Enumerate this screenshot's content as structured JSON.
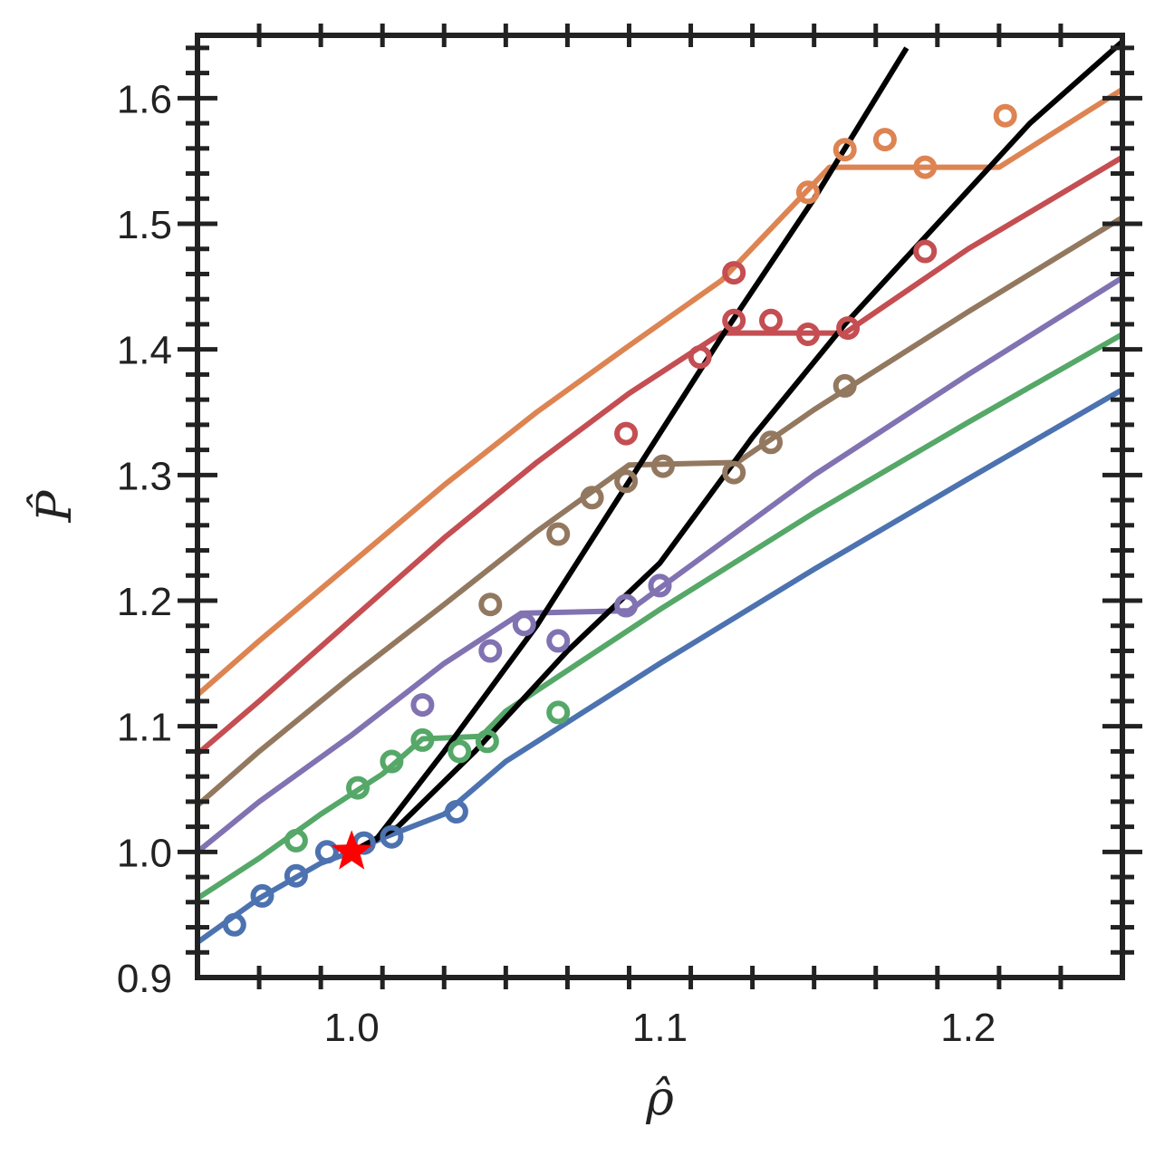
{
  "chart_data": {
    "type": "line",
    "title": "",
    "xlabel": "ρ̂",
    "ylabel": "P̂",
    "xlim": [
      0.95,
      1.25
    ],
    "ylim": [
      0.9,
      1.65
    ],
    "xticks": [
      1.0,
      1.1,
      1.2
    ],
    "xtick_labels": [
      "1.0",
      "1.1",
      "1.2"
    ],
    "yticks": [
      0.9,
      1.0,
      1.1,
      1.2,
      1.3,
      1.4,
      1.5,
      1.6
    ],
    "ytick_labels": [
      "0.9",
      "1.0",
      "1.1",
      "1.2",
      "1.3",
      "1.4",
      "1.5",
      "1.6"
    ],
    "grid": false,
    "legend": "none",
    "series": [
      {
        "color": "#4c72b0",
        "line": [
          [
            0.95,
            0.928
          ],
          [
            0.97,
            0.963
          ],
          [
            0.99,
            0.991
          ],
          [
            1.0,
            1.0
          ],
          [
            1.01,
            1.011
          ],
          [
            1.03,
            1.03
          ],
          [
            1.05,
            1.072
          ],
          [
            1.1,
            1.15
          ],
          [
            1.15,
            1.225
          ],
          [
            1.2,
            1.297
          ],
          [
            1.25,
            1.368
          ]
        ],
        "points": [
          [
            0.962,
            0.942
          ],
          [
            0.971,
            0.965
          ],
          [
            0.982,
            0.981
          ],
          [
            0.992,
            1.0
          ],
          [
            1.004,
            1.007
          ],
          [
            1.013,
            1.012
          ],
          [
            1.034,
            1.032
          ]
        ]
      },
      {
        "color": "#55a868",
        "line": [
          [
            0.95,
            0.963
          ],
          [
            0.97,
            0.995
          ],
          [
            0.99,
            1.03
          ],
          [
            1.01,
            1.062
          ],
          [
            1.023,
            1.09
          ],
          [
            1.042,
            1.092
          ],
          [
            1.05,
            1.112
          ],
          [
            1.1,
            1.193
          ],
          [
            1.15,
            1.27
          ],
          [
            1.2,
            1.342
          ],
          [
            1.25,
            1.412
          ]
        ],
        "points": [
          [
            0.982,
            1.009
          ],
          [
            1.002,
            1.051
          ],
          [
            1.013,
            1.072
          ],
          [
            1.023,
            1.089
          ],
          [
            1.035,
            1.08
          ],
          [
            1.044,
            1.088
          ],
          [
            1.067,
            1.111
          ]
        ]
      },
      {
        "color": "#8172b2",
        "line": [
          [
            0.95,
            1.0
          ],
          [
            0.97,
            1.04
          ],
          [
            1.0,
            1.093
          ],
          [
            1.03,
            1.15
          ],
          [
            1.055,
            1.19
          ],
          [
            1.09,
            1.192
          ],
          [
            1.1,
            1.21
          ],
          [
            1.15,
            1.3
          ],
          [
            1.2,
            1.38
          ],
          [
            1.25,
            1.457
          ]
        ],
        "points": [
          [
            1.023,
            1.117
          ],
          [
            1.045,
            1.16
          ],
          [
            1.056,
            1.181
          ],
          [
            1.067,
            1.168
          ],
          [
            1.089,
            1.196
          ],
          [
            1.1,
            1.212
          ]
        ]
      },
      {
        "color": "#937860",
        "line": [
          [
            0.95,
            1.037
          ],
          [
            0.97,
            1.08
          ],
          [
            1.0,
            1.14
          ],
          [
            1.03,
            1.197
          ],
          [
            1.06,
            1.255
          ],
          [
            1.09,
            1.308
          ],
          [
            1.125,
            1.31
          ],
          [
            1.14,
            1.335
          ],
          [
            1.15,
            1.352
          ],
          [
            1.2,
            1.43
          ],
          [
            1.25,
            1.505
          ]
        ],
        "points": [
          [
            1.045,
            1.197
          ],
          [
            1.067,
            1.253
          ],
          [
            1.078,
            1.282
          ],
          [
            1.089,
            1.295
          ],
          [
            1.101,
            1.307
          ],
          [
            1.124,
            1.302
          ],
          [
            1.136,
            1.326
          ],
          [
            1.16,
            1.371
          ]
        ]
      },
      {
        "color": "#c44e52",
        "line": [
          [
            0.95,
            1.078
          ],
          [
            0.97,
            1.12
          ],
          [
            1.0,
            1.185
          ],
          [
            1.03,
            1.25
          ],
          [
            1.06,
            1.31
          ],
          [
            1.09,
            1.365
          ],
          [
            1.12,
            1.413
          ],
          [
            1.16,
            1.413
          ],
          [
            1.2,
            1.48
          ],
          [
            1.25,
            1.553
          ]
        ],
        "points": [
          [
            1.089,
            1.333
          ],
          [
            1.113,
            1.394
          ],
          [
            1.124,
            1.423
          ],
          [
            1.136,
            1.423
          ],
          [
            1.148,
            1.412
          ],
          [
            1.161,
            1.417
          ],
          [
            1.186,
            1.478
          ],
          [
            1.124,
            1.461
          ]
        ]
      },
      {
        "color": "#dd8452",
        "line": [
          [
            0.95,
            1.125
          ],
          [
            0.97,
            1.168
          ],
          [
            1.0,
            1.23
          ],
          [
            1.03,
            1.292
          ],
          [
            1.06,
            1.35
          ],
          [
            1.09,
            1.403
          ],
          [
            1.12,
            1.455
          ],
          [
            1.155,
            1.545
          ],
          [
            1.21,
            1.545
          ],
          [
            1.25,
            1.607
          ]
        ],
        "points": [
          [
            1.148,
            1.525
          ],
          [
            1.16,
            1.559
          ],
          [
            1.173,
            1.567
          ],
          [
            1.186,
            1.545
          ],
          [
            1.212,
            1.586
          ]
        ]
      }
    ],
    "boundary_lines": [
      {
        "color": "#000000",
        "line": [
          [
            1.0,
            1.0
          ],
          [
            1.008,
            1.01
          ],
          [
            1.03,
            1.08
          ],
          [
            1.06,
            1.18
          ],
          [
            1.09,
            1.295
          ],
          [
            1.12,
            1.41
          ],
          [
            1.15,
            1.52
          ],
          [
            1.18,
            1.64
          ]
        ]
      },
      {
        "color": "#000000",
        "line": [
          [
            1.0,
            1.0
          ],
          [
            1.015,
            1.02
          ],
          [
            1.04,
            1.08
          ],
          [
            1.07,
            1.16
          ],
          [
            1.1,
            1.23
          ],
          [
            1.13,
            1.33
          ],
          [
            1.16,
            1.42
          ],
          [
            1.19,
            1.5
          ],
          [
            1.22,
            1.58
          ],
          [
            1.25,
            1.645
          ]
        ]
      }
    ],
    "critical_point": {
      "x": 1.0,
      "y": 1.0,
      "color": "#ff0000",
      "marker": "star"
    }
  }
}
